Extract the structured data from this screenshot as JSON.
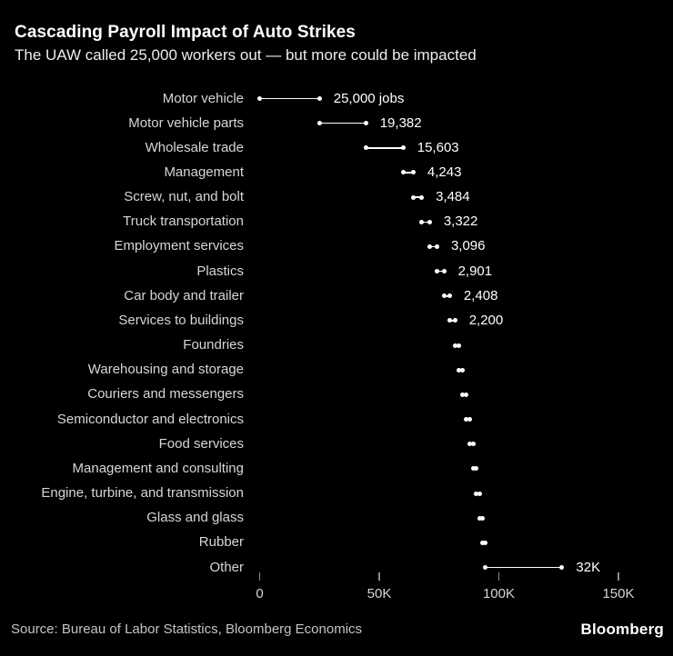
{
  "header": {
    "title": "Cascading Payroll Impact of Auto Strikes",
    "subtitle": "The UAW called 25,000 workers out — but more could be impacted"
  },
  "footer": {
    "source": "Source: Bureau of Labor Statistics, Bloomberg Economics",
    "brand": "Bloomberg"
  },
  "colors": {
    "background": "#000000",
    "title": "#ffffff",
    "subtitle": "#ededed",
    "category_label": "#d6d6d6",
    "value_label": "#ffffff",
    "dot_and_line": "#ffffff",
    "tick": "#8a8a8a",
    "axis_label": "#d6d6d6",
    "source": "#c4c4c4",
    "brand": "#ffffff"
  },
  "chart_data": {
    "type": "bar",
    "variant": "cascading-dumbbell-waterfall",
    "title": "Cascading Payroll Impact of Auto Strikes",
    "subtitle": "The UAW called 25,000 workers out — but more could be impacted",
    "unit": "jobs",
    "orientation": "horizontal",
    "grid": false,
    "legend": false,
    "categories": [
      "Motor vehicle",
      "Motor vehicle parts",
      "Wholesale trade",
      "Management",
      "Screw, nut, and bolt",
      "Truck transportation",
      "Employment services",
      "Plastics",
      "Car body and trailer",
      "Services to buildings",
      "Foundries",
      "Warehousing and storage",
      "Couriers and messengers",
      "Semiconductor and electronics",
      "Food services",
      "Management and consulting",
      "Engine, turbine, and transmission",
      "Glass and glass",
      "Rubber",
      "Other"
    ],
    "values": [
      25000,
      19382,
      15603,
      4243,
      3484,
      3322,
      3096,
      2901,
      2408,
      2200,
      1700,
      1600,
      1500,
      1450,
      1400,
      1350,
      1300,
      1250,
      1200,
      32000
    ],
    "value_labels": [
      "25,000 jobs",
      "19,382",
      "15,603",
      "4,243",
      "3,484",
      "3,322",
      "3,096",
      "2,901",
      "2,408",
      "2,200",
      "",
      "",
      "",
      "",
      "",
      "",
      "",
      "",
      "",
      "32K"
    ],
    "cumulative_end_approx": [
      25000,
      44382,
      59985,
      64228,
      67712,
      71034,
      74130,
      77031,
      79439,
      81639,
      83339,
      84939,
      86439,
      87889,
      89289,
      90639,
      91939,
      93189,
      94389,
      126389
    ],
    "x_axis": {
      "min": 0,
      "max": 150000,
      "ticks": [
        0,
        50000,
        100000,
        150000
      ],
      "tick_labels": [
        "0",
        "50K",
        "100K",
        "150K"
      ]
    }
  }
}
